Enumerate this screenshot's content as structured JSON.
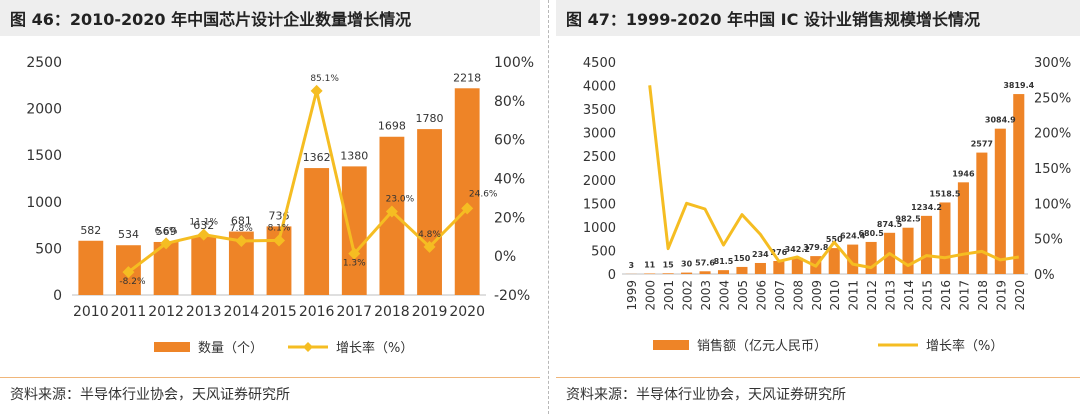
{
  "colors": {
    "bar": "#ee8427",
    "line": "#f5bd22"
  },
  "panels": {
    "left": {
      "title": "图 46：2010-2020 年中国芯片设计企业数量增长情况",
      "source": "资料来源：半导体行业协会，天风证券研究所"
    },
    "right": {
      "title": "图 47：1999-2020 年中国 IC 设计业销售规模增长情况",
      "source": "资料来源：半导体行业协会，天风证券研究所"
    }
  },
  "chart_data": [
    {
      "type": "bar",
      "categories": [
        "2010",
        "2011",
        "2012",
        "2013",
        "2014",
        "2015",
        "2016",
        "2017",
        "2018",
        "2019",
        "2020"
      ],
      "series": [
        {
          "name": "数量（个）",
          "type": "bar",
          "axis": "left",
          "values": [
            582,
            534,
            569,
            632,
            681,
            736,
            1362,
            1380,
            1698,
            1780,
            2218
          ],
          "labels": [
            "582",
            "534",
            "569",
            "632",
            "681",
            "736",
            "1362",
            "1380",
            "1698",
            "1780",
            "2218"
          ]
        },
        {
          "name": "增长率（%）",
          "type": "line",
          "axis": "right",
          "marker": "diamond",
          "values": [
            null,
            -8.2,
            6.6,
            11.1,
            7.8,
            8.1,
            85.1,
            1.3,
            23.0,
            4.8,
            24.6
          ],
          "labels": [
            "",
            "-8.2%",
            "6.6%",
            "11.1%",
            "7.8%",
            "8.1%",
            "85.1%",
            "1.3%",
            "23.0%",
            "4.8%",
            "24.6%"
          ]
        }
      ],
      "y_left": {
        "ylim": [
          0,
          2500
        ],
        "ticks": [
          "0",
          "500",
          "1000",
          "1500",
          "2000",
          "2500"
        ]
      },
      "y_right": {
        "ylim": [
          -20,
          100
        ],
        "ticks": [
          "-20%",
          "0%",
          "20%",
          "40%",
          "60%",
          "80%",
          "100%"
        ]
      },
      "legend_position": "bottom",
      "grid": false
    },
    {
      "type": "bar",
      "categories": [
        "1999",
        "2000",
        "2001",
        "2002",
        "2003",
        "2004",
        "2005",
        "2006",
        "2007",
        "2008",
        "2009",
        "2010",
        "2011",
        "2012",
        "2013",
        "2014",
        "2015",
        "2016",
        "2017",
        "2018",
        "2019",
        "2020"
      ],
      "series": [
        {
          "name": "销售额（亿元人民币）",
          "type": "bar",
          "axis": "left",
          "values": [
            3,
            11,
            15,
            30,
            57.6,
            81.5,
            150,
            234,
            276,
            342.2,
            379.8,
            550,
            624.4,
            680.5,
            874.5,
            982.5,
            1234.2,
            1518.5,
            1946,
            2577,
            3084.9,
            3819.4
          ],
          "labels": [
            "3",
            "11",
            "15",
            "30",
            "57.6",
            "81.5",
            "150",
            "234",
            "276",
            "342.2",
            "379.8",
            "550",
            "624.4",
            "680.5",
            "874.5",
            "982.5",
            "1234.2",
            "1518.5",
            "1946",
            "2577",
            "3084.9",
            "3819.4"
          ]
        },
        {
          "name": "增长率（%）",
          "type": "line",
          "axis": "right",
          "values": [
            null,
            267,
            36,
            100,
            92,
            41,
            84,
            56,
            18,
            24,
            11,
            45,
            14,
            9,
            29,
            12,
            26,
            23,
            28,
            32,
            20,
            24
          ]
        }
      ],
      "y_left": {
        "ylim": [
          0,
          4500
        ],
        "ticks": [
          "0",
          "500",
          "1000",
          "1500",
          "2000",
          "2500",
          "3000",
          "3500",
          "4000",
          "4500"
        ]
      },
      "y_right": {
        "ylim": [
          0,
          300
        ],
        "ticks": [
          "0%",
          "50%",
          "100%",
          "150%",
          "200%",
          "250%",
          "300%"
        ]
      },
      "legend_position": "bottom",
      "grid": false
    }
  ]
}
